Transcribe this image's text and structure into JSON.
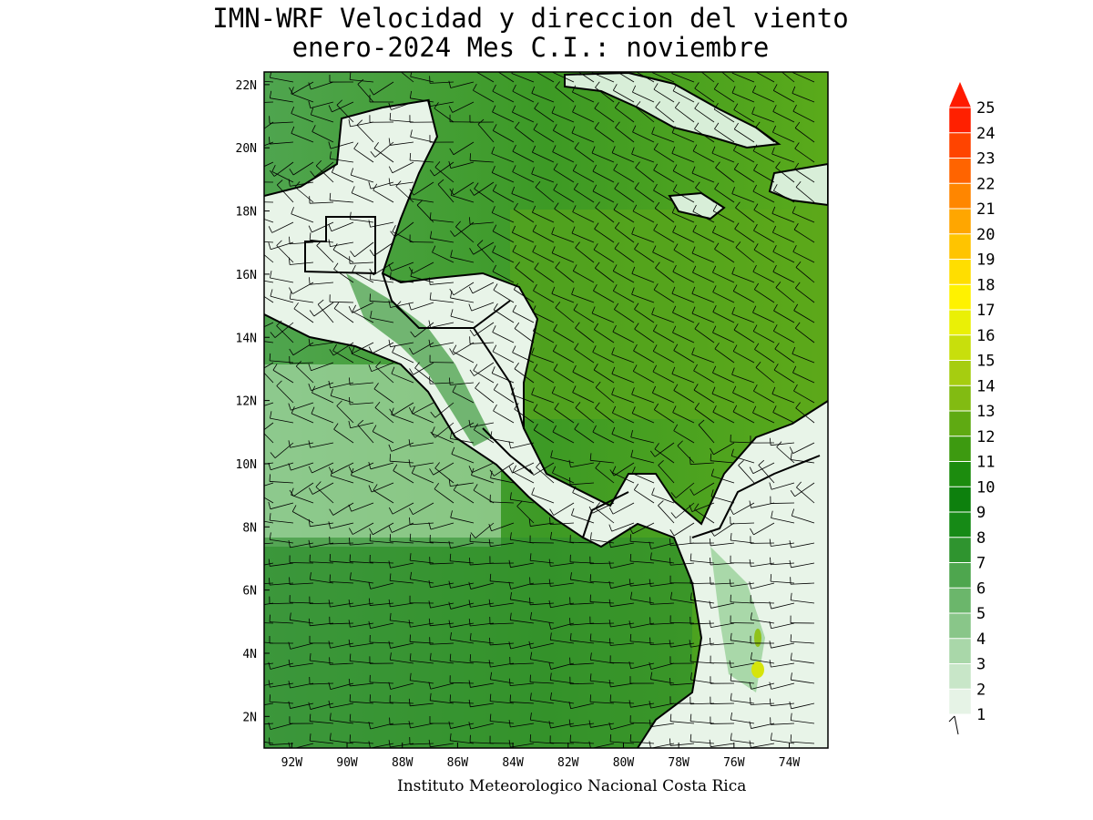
{
  "title_line1": "IMN-WRF Velocidad y direccion del viento",
  "title_line2": "enero-2024 Mes C.I.: noviembre",
  "credit": "Instituto Meteorologico Nacional Costa Rica",
  "lat_labels": [
    "22N",
    "20N",
    "18N",
    "16N",
    "14N",
    "12N",
    "10N",
    "8N",
    "6N",
    "4N",
    "2N"
  ],
  "lat_values": [
    22,
    20,
    18,
    16,
    14,
    12,
    10,
    8,
    6,
    4,
    2
  ],
  "lon_labels": [
    "92W",
    "90W",
    "88W",
    "86W",
    "84W",
    "82W",
    "80W",
    "78W",
    "76W",
    "74W"
  ],
  "lon_values": [
    -92,
    -90,
    -88,
    -86,
    -84,
    -82,
    -80,
    -78,
    -76,
    -74
  ],
  "map_extent": {
    "lon_min": -93,
    "lon_max": -72.6,
    "lat_min": 1,
    "lat_max": 22.4
  },
  "legend": {
    "levels": [
      "1",
      "2",
      "3",
      "4",
      "5",
      "6",
      "7",
      "8",
      "9",
      "10",
      "11",
      "12",
      "13",
      "14",
      "15",
      "16",
      "17",
      "18",
      "19",
      "20",
      "21",
      "22",
      "23",
      "24",
      "25"
    ],
    "colors": [
      "#ffffff",
      "#e6f3e6",
      "#c8e6c8",
      "#a9d7a9",
      "#89c689",
      "#6bb66b",
      "#4ea64e",
      "#2f942f",
      "#168a16",
      "#0d800d",
      "#1c8c0e",
      "#3d9a10",
      "#5faa12",
      "#82bb12",
      "#a6cd10",
      "#c8df0c",
      "#eaf006",
      "#fff200",
      "#ffde00",
      "#ffc400",
      "#ffa600",
      "#ff8600",
      "#ff6400",
      "#ff4400",
      "#ff2000"
    ],
    "arrow_color": "#ff1a00"
  },
  "colors": {
    "frame": "#000000",
    "land_light": "#eef7ee",
    "sea_mid": "#3f9a3f"
  }
}
